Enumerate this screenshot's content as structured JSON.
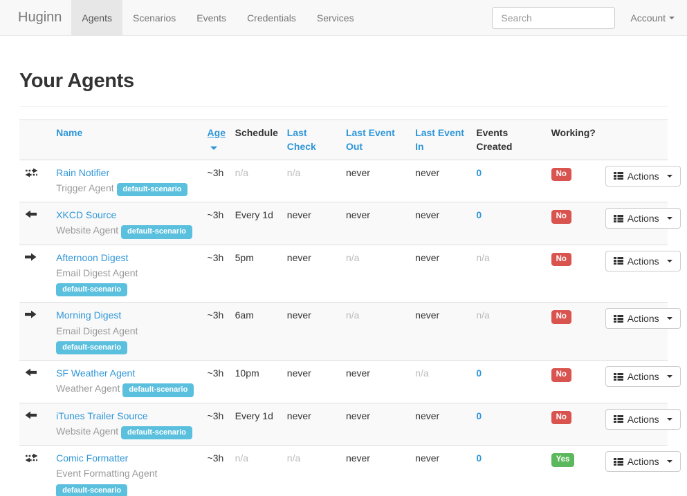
{
  "navbar": {
    "brand": "Huginn",
    "items": [
      {
        "label": "Agents",
        "active": true
      },
      {
        "label": "Scenarios",
        "active": false
      },
      {
        "label": "Events",
        "active": false
      },
      {
        "label": "Credentials",
        "active": false
      },
      {
        "label": "Services",
        "active": false
      }
    ],
    "search_placeholder": "Search",
    "account_label": "Account"
  },
  "page": {
    "title": "Your Agents"
  },
  "table": {
    "headers": [
      {
        "key": "icon",
        "label": "",
        "style": "plain",
        "sorted": false
      },
      {
        "key": "name",
        "label": "Name",
        "style": "link",
        "sorted": false
      },
      {
        "key": "age",
        "label": "Age",
        "style": "link",
        "sorted": true
      },
      {
        "key": "schedule",
        "label": "Schedule",
        "style": "plain",
        "sorted": false
      },
      {
        "key": "last-check",
        "label": "Last Check",
        "style": "link",
        "sorted": false
      },
      {
        "key": "last-event-out",
        "label": "Last Event Out",
        "style": "link",
        "sorted": false
      },
      {
        "key": "last-event-in",
        "label": "Last Event In",
        "style": "link",
        "sorted": false
      },
      {
        "key": "events-created",
        "label": "Events Created",
        "style": "plain",
        "sorted": false
      },
      {
        "key": "working",
        "label": "Working?",
        "style": "plain",
        "sorted": false
      },
      {
        "key": "actions",
        "label": "",
        "style": "plain",
        "sorted": false
      }
    ],
    "actions_label": "Actions",
    "rows": [
      {
        "icon": "transfer",
        "name": "Rain Notifier",
        "type": "Trigger Agent",
        "badge": "default-scenario",
        "badge_on_new_line": false,
        "age": "~3h",
        "schedule": "n/a",
        "last_check": "n/a",
        "last_event_out": "never",
        "last_event_in": "never",
        "events_created": "0",
        "working": "No"
      },
      {
        "icon": "arrow-left",
        "name": "XKCD Source",
        "type": "Website Agent",
        "badge": "default-scenario",
        "badge_on_new_line": false,
        "age": "~3h",
        "schedule": "Every 1d",
        "last_check": "never",
        "last_event_out": "never",
        "last_event_in": "never",
        "events_created": "0",
        "working": "No"
      },
      {
        "icon": "arrow-right",
        "name": "Afternoon Digest",
        "type": "Email Digest Agent",
        "badge": "default-scenario",
        "badge_on_new_line": true,
        "age": "~3h",
        "schedule": "5pm",
        "last_check": "never",
        "last_event_out": "n/a",
        "last_event_in": "never",
        "events_created": "n/a",
        "working": "No"
      },
      {
        "icon": "arrow-right",
        "name": "Morning Digest",
        "type": "Email Digest Agent",
        "badge": "default-scenario",
        "badge_on_new_line": true,
        "age": "~3h",
        "schedule": "6am",
        "last_check": "never",
        "last_event_out": "n/a",
        "last_event_in": "never",
        "events_created": "n/a",
        "working": "No"
      },
      {
        "icon": "arrow-left",
        "name": "SF Weather Agent",
        "type": "Weather Agent",
        "badge": "default-scenario",
        "badge_on_new_line": false,
        "age": "~3h",
        "schedule": "10pm",
        "last_check": "never",
        "last_event_out": "never",
        "last_event_in": "n/a",
        "events_created": "0",
        "working": "No"
      },
      {
        "icon": "arrow-left",
        "name": "iTunes Trailer Source",
        "type": "Website Agent",
        "badge": "default-scenario",
        "badge_on_new_line": false,
        "age": "~3h",
        "schedule": "Every 1d",
        "last_check": "never",
        "last_event_out": "never",
        "last_event_in": "never",
        "events_created": "0",
        "working": "No"
      },
      {
        "icon": "transfer",
        "name": "Comic Formatter",
        "type": "Event Formatting Agent",
        "badge": "default-scenario",
        "badge_on_new_line": true,
        "age": "~3h",
        "schedule": "n/a",
        "last_check": "n/a",
        "last_event_out": "never",
        "last_event_in": "never",
        "events_created": "0",
        "working": "Yes"
      }
    ]
  },
  "colors": {
    "accent_blue": "#2f96d8",
    "badge_info": "#5bc0de",
    "label_danger": "#d9534f",
    "label_success": "#5cb85c",
    "navbar_bg": "#f8f8f8",
    "stripe_bg": "#f9f9f9"
  }
}
